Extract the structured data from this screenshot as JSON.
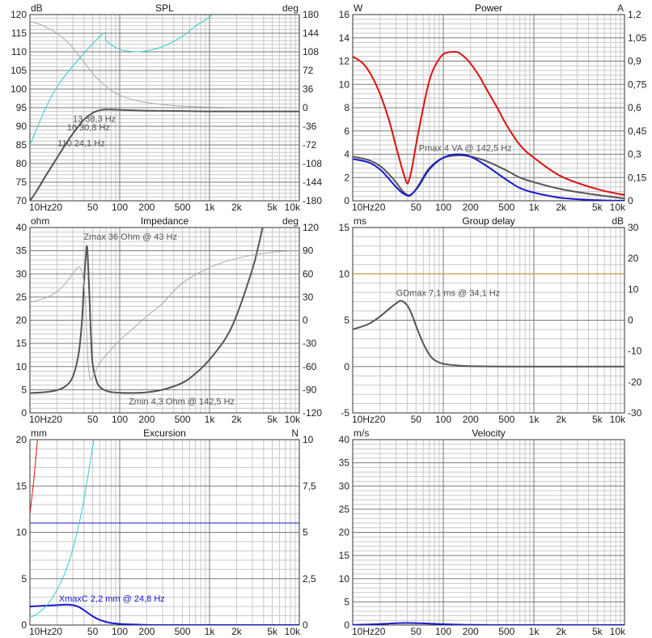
{
  "x_ticks": [
    {
      "v": 10,
      "label": "10Hz"
    },
    {
      "v": 20,
      "label": "20"
    },
    {
      "v": 50,
      "label": "50"
    },
    {
      "v": 100,
      "label": "100"
    },
    {
      "v": 200,
      "label": "200"
    },
    {
      "v": 500,
      "label": "500"
    },
    {
      "v": 1000,
      "label": "1k"
    },
    {
      "v": 2000,
      "label": "2k"
    },
    {
      "v": 5000,
      "label": "5k"
    },
    {
      "v": 10000,
      "label": "10k"
    }
  ],
  "colors": {
    "grid_major": "#7a7a7a",
    "grid_minor": "#c8c8c8",
    "frame": "#333333",
    "dark": "#555555",
    "light": "#aaaaaa",
    "cyan": "#33cccc",
    "red": "#dd1111",
    "blue": "#1a1acc",
    "orange": "#d4a038"
  },
  "chart_data": [
    {
      "id": "spl",
      "type": "line",
      "title": "SPL",
      "left_unit": "dB",
      "right_unit": "deg",
      "xscale": "log",
      "xlim": [
        10,
        10000
      ],
      "ylim": [
        70,
        120
      ],
      "y_ticks": [
        70,
        75,
        80,
        85,
        90,
        95,
        100,
        105,
        110,
        115,
        120
      ],
      "y2lim": [
        -180,
        180
      ],
      "y2_ticks": [
        -180,
        -144,
        -108,
        -72,
        -36,
        0,
        36,
        72,
        108,
        144,
        180
      ],
      "series": [
        {
          "name": "SPL",
          "color": "dark",
          "width": 2,
          "axis": "left",
          "x": [
            10,
            12,
            15,
            20,
            25,
            30,
            35,
            40,
            50,
            60,
            70,
            100,
            200,
            500,
            1000,
            10000
          ],
          "y": [
            70,
            72.8,
            76.7,
            81.5,
            85.2,
            88,
            90.1,
            91.8,
            93.6,
            94.3,
            94.5,
            94.4,
            94.2,
            94.1,
            94,
            94
          ]
        },
        {
          "name": "phase",
          "color": "light",
          "width": 1,
          "axis": "right",
          "x": [
            10,
            12,
            15,
            20,
            25,
            30,
            35,
            40,
            50,
            60,
            70,
            80,
            100,
            150,
            200,
            300,
            500,
            1000,
            2000,
            10000
          ],
          "y": [
            167,
            163,
            156,
            144,
            130,
            116,
            101,
            88,
            66,
            52,
            42,
            34,
            24,
            14,
            10,
            6,
            3,
            1,
            0.5,
            0
          ]
        },
        {
          "name": "group delay",
          "color": "cyan",
          "width": 1,
          "axis": "right",
          "x": [
            10,
            20,
            62,
            70,
            80,
            100,
            150,
            200,
            300,
            500,
            700,
            1000,
            1300
          ],
          "y": [
            -72,
            40,
            140,
            130,
            122,
            113,
            108,
            110,
            118,
            138,
            158,
            175,
            192
          ]
        }
      ],
      "annotations": [
        {
          "text": "Q 13 38,3 Hz",
          "label": "13 38,3 Hz",
          "x": 34,
          "y": 91.9
        },
        {
          "text": "16 30,8 Hz",
          "x": 30.5,
          "y": 89.6
        },
        {
          "text": "Q 110 24,1 Hz",
          "label": "110 24,1 Hz",
          "x": 25,
          "y": 85.3
        }
      ]
    },
    {
      "id": "power",
      "type": "line",
      "title": "Power",
      "left_unit": "W",
      "right_unit": "A",
      "xscale": "log",
      "xlim": [
        10,
        10000
      ],
      "ylim": [
        0,
        16
      ],
      "y_ticks": [
        0,
        2,
        4,
        6,
        8,
        10,
        12,
        14,
        16
      ],
      "y2lim": [
        0,
        1.2
      ],
      "y2_ticks": [
        {
          "v": 0,
          "label": "0"
        },
        {
          "v": 0.15,
          "label": "0,15"
        },
        {
          "v": 0.3,
          "label": "0,3"
        },
        {
          "v": 0.45,
          "label": "0,45"
        },
        {
          "v": 0.6,
          "label": "0,6"
        },
        {
          "v": 0.75,
          "label": "0,75"
        },
        {
          "v": 0.9,
          "label": "0,9"
        },
        {
          "v": 1.05,
          "label": "1,05"
        },
        {
          "v": 1.2,
          "label": "1,2"
        }
      ],
      "series": [
        {
          "name": "current",
          "color": "red",
          "width": 2,
          "axis": "left",
          "x": [
            10,
            13,
            16,
            20,
            25,
            30,
            35,
            38,
            40,
            42,
            45,
            50,
            60,
            70,
            80,
            100,
            130,
            150,
            180,
            200,
            250,
            300,
            400,
            500,
            700,
            1000,
            2000,
            5000,
            10000
          ],
          "y": [
            12.4,
            11.8,
            10.8,
            9.2,
            7,
            4.7,
            2.8,
            1.9,
            1.5,
            1.8,
            2.8,
            4.8,
            8,
            10.3,
            11.5,
            12.6,
            12.8,
            12.7,
            12.2,
            11.8,
            10.7,
            9.6,
            7.9,
            6.5,
            4.8,
            3.7,
            2.1,
            1,
            0.5
          ]
        },
        {
          "name": "power gray",
          "color": "dark",
          "width": 2,
          "axis": "left",
          "x": [
            10,
            15,
            20,
            25,
            30,
            35,
            40,
            43,
            48,
            55,
            70,
            100,
            150,
            200,
            300,
            500,
            700,
            1000,
            2000,
            5000,
            10000
          ],
          "y": [
            3.8,
            3.5,
            3.0,
            2.3,
            1.6,
            0.9,
            0.5,
            0.5,
            0.8,
            1.5,
            2.8,
            3.7,
            3.9,
            3.8,
            3.4,
            2.6,
            2,
            1.6,
            1,
            0.5,
            0.2
          ]
        },
        {
          "name": "power",
          "color": "blue",
          "width": 2,
          "axis": "left",
          "x": [
            10,
            15,
            20,
            25,
            30,
            35,
            40,
            43,
            48,
            55,
            70,
            100,
            142.5,
            200,
            300,
            500,
            700,
            1000,
            2000,
            5000,
            10000
          ],
          "y": [
            3.6,
            3.3,
            2.7,
            1.9,
            1.2,
            0.7,
            0.45,
            0.45,
            0.8,
            1.4,
            2.7,
            3.7,
            4,
            3.8,
            3,
            1.8,
            1.1,
            0.7,
            0.25,
            0.05,
            0.01
          ]
        }
      ],
      "annotations": [
        {
          "text": "Pmax 4 VA  @ 142,5 Hz",
          "x": 142.5,
          "y": 4
        }
      ]
    },
    {
      "id": "impedance",
      "type": "line",
      "title": "Impedance",
      "left_unit": "ohm",
      "right_unit": "deg",
      "xscale": "log",
      "xlim": [
        10,
        10000
      ],
      "ylim": [
        0,
        40
      ],
      "y_ticks": [
        0,
        5,
        10,
        15,
        20,
        25,
        30,
        35,
        40
      ],
      "y2lim": [
        -120,
        120
      ],
      "y2_ticks": [
        -120,
        -90,
        -60,
        -30,
        0,
        30,
        60,
        90,
        120
      ],
      "series": [
        {
          "name": "impedance",
          "color": "dark",
          "width": 2,
          "axis": "left",
          "x": [
            10,
            15,
            20,
            25,
            30,
            35,
            38,
            40,
            42,
            43,
            44,
            46,
            48,
            50,
            55,
            60,
            70,
            80,
            100,
            142.5,
            200,
            300,
            500,
            700,
            1000,
            1500,
            2000,
            3000,
            3500,
            4000
          ],
          "y": [
            4.3,
            4.5,
            4.9,
            5.8,
            7.8,
            13,
            20,
            28,
            34,
            36,
            34,
            25,
            16,
            10.5,
            7,
            5.6,
            4.8,
            4.5,
            4.35,
            4.3,
            4.45,
            5,
            6.5,
            8.5,
            11.5,
            16,
            21,
            31,
            36,
            41
          ]
        },
        {
          "name": "phase",
          "color": "light",
          "width": 1,
          "axis": "right",
          "x": [
            10,
            15,
            20,
            25,
            30,
            35,
            38,
            40,
            42,
            43,
            44,
            46,
            48,
            52,
            60,
            80,
            100,
            150,
            200,
            300,
            500,
            1000,
            2000,
            5000,
            10000
          ],
          "y": [
            23,
            29,
            37,
            48,
            60,
            69,
            62,
            48,
            10,
            -20,
            -48,
            -72,
            -77,
            -70,
            -55,
            -38,
            -26,
            -8,
            5,
            22,
            48,
            68,
            80,
            88,
            90
          ]
        }
      ],
      "annotations": [
        {
          "text": "Zmax 36 Ohm @ 43 Hz",
          "x": 43,
          "y": 36
        },
        {
          "text": "Zmin 4,3 Ohm @ 142,5 Hz",
          "x": 142.5,
          "y": 4.3
        }
      ]
    },
    {
      "id": "groupdelay",
      "type": "line",
      "title": "Group delay",
      "left_unit": "ms",
      "right_unit": "dB",
      "xscale": "log",
      "xlim": [
        10,
        10000
      ],
      "ylim": [
        -5,
        15
      ],
      "y_ticks": [
        -5,
        0,
        5,
        10,
        15
      ],
      "y2lim": [
        -30,
        30
      ],
      "y2_ticks": [
        -30,
        -20,
        -10,
        0,
        10,
        20,
        30
      ],
      "series": [
        {
          "name": "reference",
          "color": "orange",
          "width": 1,
          "axis": "left",
          "x": [
            10,
            10000
          ],
          "y": [
            10,
            10
          ]
        },
        {
          "name": "group delay",
          "color": "dark",
          "width": 2,
          "axis": "left",
          "x": [
            10,
            15,
            20,
            25,
            30,
            34.1,
            40,
            45,
            50,
            60,
            70,
            80,
            100,
            150,
            200,
            500,
            1000,
            10000
          ],
          "y": [
            4,
            4.6,
            5.4,
            6.2,
            6.8,
            7.1,
            6.6,
            5.6,
            4.4,
            2.5,
            1.3,
            0.7,
            0.3,
            0.1,
            0.05,
            0,
            0,
            0
          ]
        }
      ],
      "annotations": [
        {
          "text": "GDmax 7,1 ms  @ 34,1 Hz",
          "x": 34.1,
          "y": 7.1
        }
      ]
    },
    {
      "id": "excursion",
      "type": "line",
      "title": "Excursion",
      "left_unit": "mm",
      "right_unit": "N",
      "xscale": "log",
      "xlim": [
        10,
        10000
      ],
      "ylim": [
        0,
        20
      ],
      "y_ticks": [
        0,
        5,
        10,
        15,
        20
      ],
      "y2lim": [
        0,
        10
      ],
      "y2_ticks": [
        {
          "v": 0,
          "label": "0"
        },
        {
          "v": 2.5,
          "label": "2,5"
        },
        {
          "v": 5,
          "label": "5"
        },
        {
          "v": 7.5,
          "label": "7,5"
        },
        {
          "v": 10,
          "label": "10"
        }
      ],
      "series": [
        {
          "name": "xmax",
          "color": "blue",
          "width": 1,
          "axis": "left",
          "x": [
            10,
            10000
          ],
          "y": [
            11,
            11
          ]
        },
        {
          "name": "excursion",
          "color": "blue",
          "width": 2,
          "axis": "left",
          "x": [
            10,
            15,
            20,
            24.8,
            30,
            35,
            40,
            45,
            50,
            60,
            70,
            80,
            100,
            150,
            200,
            300,
            10000
          ],
          "y": [
            2,
            2.1,
            2.15,
            2.2,
            2.15,
            1.95,
            1.6,
            1.25,
            0.95,
            0.55,
            0.35,
            0.22,
            0.12,
            0.05,
            0.02,
            0,
            0
          ]
        },
        {
          "name": "cyan",
          "color": "cyan",
          "width": 1,
          "axis": "left",
          "x": [
            10,
            12,
            15,
            18,
            20,
            25,
            30,
            35,
            40,
            45,
            50,
            55,
            60
          ],
          "y": [
            0.8,
            1.2,
            2,
            3,
            3.8,
            5.8,
            8.2,
            10.8,
            13.6,
            16.5,
            19.2,
            21.5,
            23
          ]
        },
        {
          "name": "red",
          "color": "red",
          "width": 1,
          "axis": "left",
          "x": [
            10,
            11,
            12,
            12.5
          ],
          "y": [
            12,
            15.5,
            19.5,
            21
          ]
        }
      ],
      "annotations": [
        {
          "text": "XmaxC 2,2 mm  @ 24,8 Hz",
          "x": 24.8,
          "y": 2.2
        }
      ]
    },
    {
      "id": "velocity",
      "type": "line",
      "title": "Velocity",
      "left_unit": "m/s",
      "right_unit": "",
      "xscale": "log",
      "xlim": [
        10,
        10000
      ],
      "ylim": [
        0,
        40
      ],
      "y_ticks": [
        0,
        5,
        10,
        15,
        20,
        25,
        30,
        35,
        40
      ],
      "series": [
        {
          "name": "velocity",
          "color": "blue",
          "width": 2,
          "axis": "left",
          "x": [
            10,
            15,
            20,
            25,
            30,
            35,
            40,
            45,
            50,
            60,
            80,
            100,
            150,
            200,
            300,
            500,
            10000
          ],
          "y": [
            0.05,
            0.12,
            0.22,
            0.32,
            0.4,
            0.44,
            0.45,
            0.44,
            0.42,
            0.36,
            0.26,
            0.18,
            0.08,
            0.04,
            0.01,
            0,
            0
          ]
        }
      ],
      "annotations": []
    }
  ]
}
